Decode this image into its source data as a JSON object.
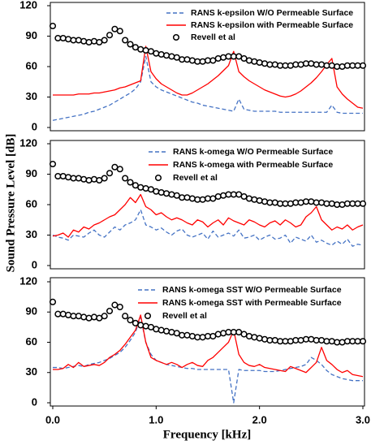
{
  "xlabel": "Frequency [kHz]",
  "ylabel": "Sound Pressure Level [dB]",
  "chart_data": [
    {
      "type": "line",
      "ylim": [
        0,
        120
      ],
      "yticks": [
        0,
        30,
        60,
        90,
        120
      ],
      "xlim": [
        0,
        3.0
      ],
      "x": [
        0,
        0.05,
        0.1,
        0.15,
        0.2,
        0.25,
        0.3,
        0.35,
        0.4,
        0.45,
        0.5,
        0.55,
        0.6,
        0.65,
        0.7,
        0.75,
        0.8,
        0.85,
        0.9,
        0.95,
        1.0,
        1.05,
        1.1,
        1.15,
        1.2,
        1.25,
        1.3,
        1.35,
        1.4,
        1.45,
        1.5,
        1.55,
        1.6,
        1.65,
        1.7,
        1.75,
        1.8,
        1.85,
        1.9,
        1.95,
        2.0,
        2.05,
        2.1,
        2.15,
        2.2,
        2.25,
        2.3,
        2.35,
        2.4,
        2.45,
        2.5,
        2.55,
        2.6,
        2.65,
        2.7,
        2.75,
        2.8,
        2.85,
        2.9,
        2.95,
        3.0
      ],
      "series": [
        {
          "name": "RANS k-epsilon W/O Permeable Surface",
          "color": "#4472c4",
          "style": "dashed",
          "values": [
            7,
            8,
            9,
            10,
            11,
            12,
            13,
            15,
            16,
            18,
            20,
            22,
            25,
            28,
            31,
            34,
            38,
            45,
            70,
            45,
            40,
            37,
            35,
            33,
            31,
            29,
            27,
            25,
            24,
            22,
            21,
            20,
            19,
            18,
            17,
            16,
            28,
            18,
            17,
            16,
            16,
            16,
            16,
            16,
            15,
            15,
            15,
            15,
            15,
            15,
            15,
            15,
            15,
            15,
            22,
            15,
            14,
            14,
            14,
            14,
            14
          ]
        },
        {
          "name": "RANS k-epsilon with Permeable Surface",
          "color": "#ff0000",
          "style": "solid",
          "values": [
            32,
            32,
            32,
            32,
            32,
            33,
            33,
            33,
            34,
            34,
            35,
            36,
            37,
            39,
            40,
            42,
            44,
            46,
            80,
            55,
            48,
            43,
            40,
            37,
            34,
            32,
            32,
            34,
            37,
            40,
            43,
            47,
            51,
            56,
            61,
            75,
            55,
            50,
            46,
            43,
            40,
            37,
            35,
            33,
            31,
            30,
            31,
            33,
            36,
            40,
            44,
            49,
            55,
            62,
            68,
            40,
            33,
            28,
            24,
            20,
            19
          ]
        },
        {
          "name": "Revell et al",
          "color": "#000000",
          "style": "markers",
          "values": [
            100,
            88,
            88,
            87,
            86,
            86,
            85,
            84,
            85,
            84,
            86,
            91,
            97,
            95,
            86,
            82,
            79,
            77,
            76,
            75,
            73,
            72,
            71,
            70,
            69,
            67,
            67,
            66,
            65,
            65,
            66,
            66,
            68,
            69,
            70,
            70,
            70,
            68,
            66,
            65,
            64,
            63,
            62,
            62,
            61,
            61,
            61,
            62,
            62,
            63,
            63,
            62,
            62,
            61,
            61,
            60,
            60,
            61,
            61,
            61,
            61
          ]
        }
      ]
    },
    {
      "type": "line",
      "ylim": [
        0,
        120
      ],
      "yticks": [
        0,
        30,
        60,
        90,
        120
      ],
      "xlim": [
        0,
        3.0
      ],
      "x": [
        0,
        0.05,
        0.1,
        0.15,
        0.2,
        0.25,
        0.3,
        0.35,
        0.4,
        0.45,
        0.5,
        0.55,
        0.6,
        0.65,
        0.7,
        0.75,
        0.8,
        0.85,
        0.9,
        0.95,
        1.0,
        1.05,
        1.1,
        1.15,
        1.2,
        1.25,
        1.3,
        1.35,
        1.4,
        1.45,
        1.5,
        1.55,
        1.6,
        1.65,
        1.7,
        1.75,
        1.8,
        1.85,
        1.9,
        1.95,
        2.0,
        2.05,
        2.1,
        2.15,
        2.2,
        2.25,
        2.3,
        2.35,
        2.4,
        2.45,
        2.5,
        2.55,
        2.6,
        2.65,
        2.7,
        2.75,
        2.8,
        2.85,
        2.9,
        2.95,
        3.0
      ],
      "series": [
        {
          "name": "RANS k-omega W/O Permeable Surface",
          "color": "#4472c4",
          "style": "dashed",
          "values": [
            30,
            28,
            27,
            25,
            30,
            29,
            28,
            32,
            35,
            30,
            28,
            33,
            38,
            35,
            40,
            42,
            45,
            55,
            40,
            38,
            35,
            37,
            33,
            30,
            34,
            36,
            30,
            28,
            30,
            32,
            26,
            34,
            28,
            30,
            32,
            29,
            35,
            27,
            28,
            30,
            25,
            28,
            30,
            26,
            27,
            30,
            22,
            28,
            26,
            24,
            30,
            23,
            25,
            22,
            20,
            24,
            21,
            26,
            19,
            21,
            20
          ]
        },
        {
          "name": "RANS k-omega with Permeable Surface",
          "color": "#ff0000",
          "style": "solid",
          "values": [
            29,
            30,
            32,
            28,
            35,
            33,
            38,
            36,
            40,
            42,
            45,
            48,
            50,
            55,
            60,
            67,
            62,
            70,
            58,
            55,
            50,
            52,
            48,
            45,
            47,
            45,
            42,
            40,
            45,
            43,
            38,
            42,
            45,
            40,
            47,
            44,
            42,
            40,
            45,
            43,
            40,
            38,
            42,
            44,
            40,
            45,
            42,
            38,
            40,
            48,
            52,
            58,
            45,
            40,
            35,
            38,
            36,
            40,
            35,
            38,
            40
          ]
        },
        {
          "name": "Revell et al",
          "color": "#000000",
          "style": "markers",
          "values": [
            100,
            88,
            88,
            87,
            86,
            86,
            85,
            84,
            85,
            84,
            86,
            91,
            97,
            95,
            86,
            82,
            79,
            77,
            76,
            75,
            73,
            72,
            71,
            70,
            69,
            67,
            67,
            66,
            65,
            65,
            66,
            66,
            68,
            69,
            70,
            70,
            70,
            68,
            66,
            65,
            64,
            63,
            62,
            62,
            61,
            61,
            61,
            62,
            62,
            63,
            63,
            62,
            62,
            61,
            61,
            60,
            60,
            61,
            61,
            61,
            61
          ]
        }
      ]
    },
    {
      "type": "line",
      "ylim": [
        0,
        120
      ],
      "yticks": [
        0,
        30,
        60,
        90,
        120
      ],
      "xlim": [
        0,
        3.0
      ],
      "xticks": [
        {
          "value": 0,
          "label": "0.0"
        },
        {
          "value": 1,
          "label": "1.0"
        },
        {
          "value": 2,
          "label": "2.0"
        },
        {
          "value": 3,
          "label": "3.0"
        }
      ],
      "x": [
        0,
        0.05,
        0.1,
        0.15,
        0.2,
        0.25,
        0.3,
        0.35,
        0.4,
        0.45,
        0.5,
        0.55,
        0.6,
        0.65,
        0.7,
        0.75,
        0.8,
        0.85,
        0.9,
        0.95,
        1.0,
        1.05,
        1.1,
        1.15,
        1.2,
        1.25,
        1.3,
        1.35,
        1.4,
        1.45,
        1.5,
        1.55,
        1.6,
        1.65,
        1.7,
        1.75,
        1.8,
        1.85,
        1.9,
        1.95,
        2.0,
        2.05,
        2.1,
        2.15,
        2.2,
        2.25,
        2.3,
        2.35,
        2.4,
        2.45,
        2.5,
        2.55,
        2.6,
        2.65,
        2.7,
        2.75,
        2.8,
        2.85,
        2.9,
        2.95,
        3.0
      ],
      "series": [
        {
          "name": "RANS k-omega SST W/O Permeable Surface",
          "color": "#4472c4",
          "style": "dashed",
          "values": [
            35,
            35,
            34,
            35,
            36,
            37,
            36,
            38,
            39,
            40,
            42,
            44,
            47,
            50,
            55,
            62,
            70,
            85,
            60,
            48,
            42,
            40,
            38,
            37,
            36,
            35,
            34,
            34,
            33,
            33,
            33,
            33,
            33,
            33,
            33,
            0,
            33,
            32,
            32,
            32,
            32,
            31,
            31,
            31,
            32,
            33,
            34,
            35,
            36,
            38,
            45,
            42,
            38,
            32,
            28,
            26,
            24,
            23,
            22,
            22,
            22
          ]
        },
        {
          "name": "RANS k-omega SST with Permeable Surface",
          "color": "#ff0000",
          "style": "solid",
          "values": [
            33,
            33,
            34,
            38,
            35,
            40,
            36,
            37,
            38,
            37,
            40,
            45,
            48,
            52,
            58,
            65,
            72,
            87,
            60,
            45,
            42,
            40,
            38,
            40,
            38,
            35,
            38,
            40,
            37,
            36,
            42,
            45,
            50,
            55,
            60,
            72,
            48,
            40,
            37,
            36,
            38,
            35,
            34,
            33,
            32,
            31,
            36,
            34,
            32,
            30,
            35,
            40,
            55,
            42,
            38,
            33,
            30,
            32,
            28,
            27,
            26
          ]
        },
        {
          "name": "Revell et al",
          "color": "#000000",
          "style": "markers",
          "values": [
            100,
            88,
            88,
            87,
            86,
            86,
            85,
            84,
            85,
            84,
            86,
            91,
            97,
            95,
            86,
            82,
            79,
            77,
            76,
            75,
            73,
            72,
            71,
            70,
            69,
            67,
            67,
            66,
            65,
            65,
            66,
            66,
            68,
            69,
            70,
            70,
            70,
            68,
            66,
            65,
            64,
            63,
            62,
            62,
            61,
            61,
            61,
            62,
            62,
            63,
            63,
            62,
            62,
            61,
            61,
            60,
            60,
            61,
            61,
            61,
            61
          ]
        }
      ]
    }
  ]
}
